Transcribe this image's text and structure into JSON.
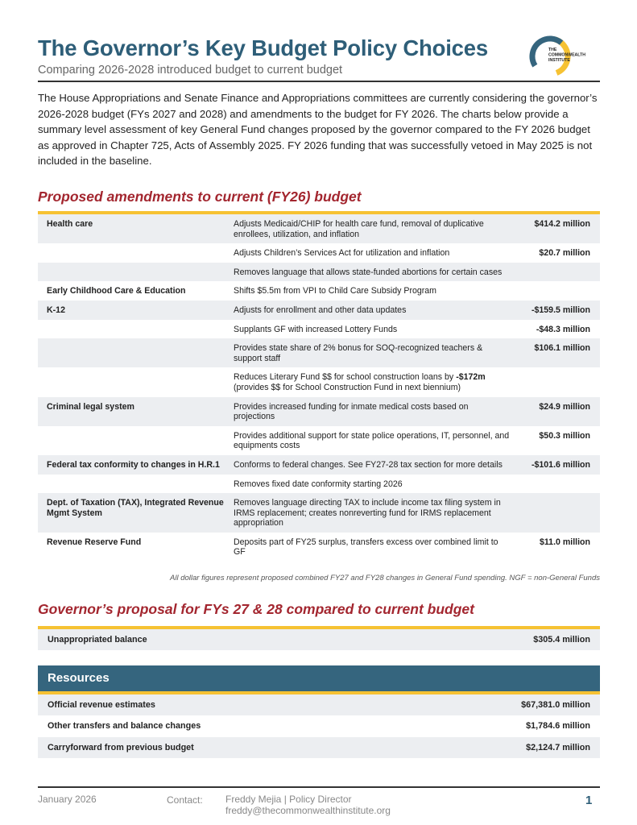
{
  "header": {
    "title": "The Governor’s Key Budget Policy Choices",
    "subtitle": "Comparing 2026-2028 introduced budget to current budget",
    "logo_text": "THE COMMONWEALTH INSTITUTE"
  },
  "intro": "The House Appropriations and Senate Finance and Appropriations committees are currently considering the governor’s 2026-2028 budget (FYs 2027 and 2028) and amendments to the budget for FY 2026. The charts below provide a summary level assessment of key General Fund changes proposed by the governor compared to the FY 2026 budget as approved in Chapter 725, Acts of Assembly 2025. FY 2026 funding that was successfully vetoed in May 2025 is not included in the baseline.",
  "section1": {
    "heading": "Proposed amendments to current (FY26) budget",
    "rows": [
      {
        "category": "Health care",
        "description": "Adjusts Medicaid/CHIP for health care fund, removal of duplicative enrollees, utilization, and inflation",
        "amount": "$414.2 million"
      },
      {
        "category": "",
        "description": "Adjusts Children’s Services Act for utilization and inflation",
        "amount": "$20.7 million"
      },
      {
        "category": "",
        "description": "Removes language that allows state-funded abortions for certain cases",
        "amount": ""
      },
      {
        "category": "Early Childhood Care & Education",
        "description": "Shifts $5.5m from VPI to Child Care Subsidy Program",
        "amount": ""
      },
      {
        "category": "K-12",
        "description": "Adjusts for enrollment and other data updates",
        "amount": "-$159.5 million"
      },
      {
        "category": "",
        "description": "Supplants GF with increased Lottery Funds",
        "amount": "-$48.3 million"
      },
      {
        "category": "",
        "description": "Provides state share of 2% bonus for SOQ-recognized teachers & support staff",
        "amount": "$106.1 million"
      },
      {
        "category": "",
        "description": "Reduces Literary Fund $$ for school construction loans by ",
        "description_bold": "-$172m",
        "description_after": " (provides $$ for School Construction Fund in next biennium)",
        "amount": ""
      },
      {
        "category": "Criminal legal system",
        "description": "Provides increased funding for inmate medical costs based on projections",
        "amount": "$24.9 million"
      },
      {
        "category": "",
        "description": "Provides additional support for state police operations, IT, personnel, and equipments costs",
        "amount": "$50.3 million"
      },
      {
        "category": "Federal tax conformity to changes in H.R.1",
        "description": "Conforms to federal changes. See FY27-28 tax section for more details",
        "amount": "-$101.6 million"
      },
      {
        "category": "",
        "description": "Removes fixed date conformity starting 2026",
        "amount": ""
      },
      {
        "category": "Dept. of Taxation (TAX), Integrated Revenue Mgmt System",
        "description": "Removes language directing TAX to include income tax filing system in IRMS replacement; creates nonreverting fund for IRMS replacement appropriation",
        "amount": ""
      },
      {
        "category": "Revenue Reserve Fund",
        "description": "Deposits part of FY25 surplus, transfers excess over combined limit to GF",
        "amount": "$11.0 million"
      }
    ],
    "footnote": "All dollar figures represent proposed combined FY27 and FY28 changes in General Fund spending.  NGF = non-General Funds"
  },
  "section2": {
    "heading": "Governor’s proposal for FYs 27 & 28 compared to current budget",
    "unappropriated": {
      "label": "Unappropriated balance",
      "amount": "$305.4 million"
    },
    "resources_heading": "Resources",
    "resources": [
      {
        "label": "Official revenue estimates",
        "amount": "$67,381.0 million"
      },
      {
        "label": "Other transfers and balance changes",
        "amount": "$1,784.6 million"
      },
      {
        "label": "Carryforward from previous budget",
        "amount": "$2,124.7 million"
      }
    ]
  },
  "footer": {
    "date": "January 2026",
    "contact_label": "Contact:",
    "contact_name": "Freddy Mejia | Policy Director",
    "contact_email": "freddy@thecommonwealthinstitute.org",
    "page_number": "1"
  },
  "colors": {
    "brand_blue": "#2e5e78",
    "accent_yellow": "#f6c233",
    "heading_red": "#a3262f",
    "row_shade": "#eceef1"
  }
}
